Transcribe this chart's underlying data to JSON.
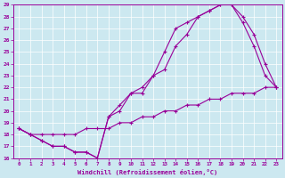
{
  "xlabel": "Windchill (Refroidissement éolien,°C)",
  "bg_color": "#cce8f0",
  "line_color": "#990099",
  "xlim": [
    -0.5,
    23.5
  ],
  "ylim": [
    16,
    29
  ],
  "xticks": [
    0,
    1,
    2,
    3,
    4,
    5,
    6,
    7,
    8,
    9,
    10,
    11,
    12,
    13,
    14,
    15,
    16,
    17,
    18,
    19,
    20,
    21,
    22,
    23
  ],
  "yticks": [
    16,
    17,
    18,
    19,
    20,
    21,
    22,
    23,
    24,
    25,
    26,
    27,
    28,
    29
  ],
  "line1_x": [
    0,
    1,
    2,
    3,
    4,
    5,
    6,
    7,
    8,
    9,
    10,
    11,
    12,
    13,
    14,
    15,
    16,
    17,
    18,
    19,
    20,
    21,
    22,
    23
  ],
  "line1_y": [
    18.5,
    18.0,
    17.5,
    17.0,
    17.0,
    16.5,
    16.5,
    16.0,
    19.5,
    20.0,
    21.5,
    21.5,
    23.0,
    23.5,
    25.5,
    26.5,
    28.0,
    28.5,
    29.0,
    29.0,
    28.0,
    26.5,
    24.0,
    22.0
  ],
  "line2_x": [
    0,
    1,
    2,
    3,
    4,
    5,
    6,
    7,
    8,
    9,
    10,
    11,
    12,
    13,
    14,
    15,
    16,
    17,
    18,
    19,
    20,
    21,
    22,
    23
  ],
  "line2_y": [
    18.5,
    18.0,
    17.5,
    17.0,
    17.0,
    16.5,
    16.5,
    16.0,
    19.5,
    20.5,
    21.5,
    22.0,
    23.0,
    25.0,
    27.0,
    27.5,
    28.0,
    28.5,
    29.0,
    29.0,
    27.5,
    25.5,
    23.0,
    22.0
  ],
  "line3_x": [
    0,
    1,
    2,
    3,
    4,
    5,
    6,
    7,
    8,
    9,
    10,
    11,
    12,
    13,
    14,
    15,
    16,
    17,
    18,
    19,
    20,
    21,
    22,
    23
  ],
  "line3_y": [
    18.5,
    18.0,
    18.0,
    18.0,
    18.0,
    18.0,
    18.5,
    18.5,
    18.5,
    19.0,
    19.0,
    19.5,
    19.5,
    20.0,
    20.0,
    20.5,
    20.5,
    21.0,
    21.0,
    21.5,
    21.5,
    21.5,
    22.0,
    22.0
  ]
}
